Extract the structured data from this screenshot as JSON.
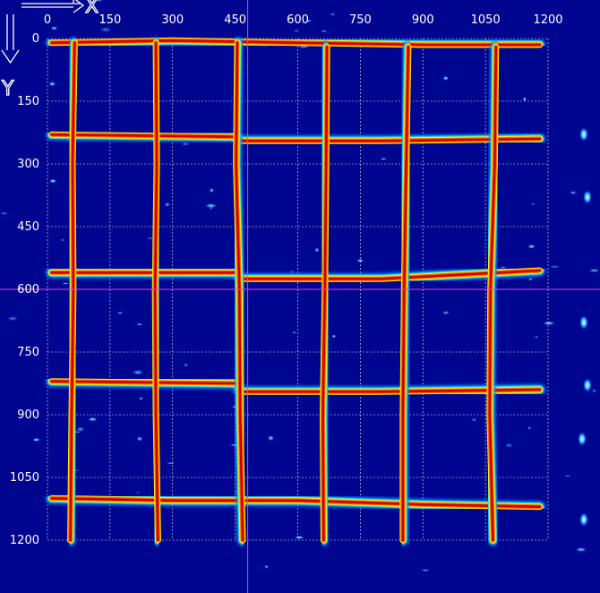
{
  "chart_data": {
    "type": "heatmap",
    "title": "",
    "xlabel": "X",
    "ylabel": "Y",
    "xlim": [
      0,
      1200
    ],
    "ylim": [
      0,
      1200
    ],
    "y_inverted": true,
    "x_ticks": [
      0,
      150,
      300,
      450,
      600,
      750,
      900,
      1050,
      1200
    ],
    "x_tick_labels": [
      "0",
      "150",
      "300",
      "450",
      "600",
      "750",
      "900",
      "1050",
      "1200"
    ],
    "y_ticks": [
      0,
      150,
      300,
      450,
      600,
      750,
      900,
      1050,
      1200
    ],
    "y_tick_labels": [
      "0",
      "150",
      "300",
      "450",
      "600",
      "750",
      "900",
      "1050",
      "1200"
    ],
    "grid": true,
    "colormap": "jet",
    "colors": {
      "background": "#00068f",
      "grid": "#ffffff",
      "crosshair": "#e040e0"
    },
    "crosshair": {
      "x": 480,
      "y": 600
    },
    "vertical_lines": [
      {
        "y_range": [
          10,
          1200
        ],
        "points": [
          [
            65,
            10
          ],
          [
            60,
            300
          ],
          [
            62,
            600
          ],
          [
            58,
            900
          ],
          [
            55,
            1200
          ]
        ]
      },
      {
        "y_range": [
          10,
          1200
        ],
        "points": [
          [
            260,
            10
          ],
          [
            262,
            300
          ],
          [
            258,
            600
          ],
          [
            260,
            900
          ],
          [
            265,
            1200
          ]
        ]
      },
      {
        "y_range": [
          10,
          1200
        ],
        "points": [
          [
            455,
            10
          ],
          [
            452,
            300
          ],
          [
            460,
            600
          ],
          [
            462,
            900
          ],
          [
            468,
            1200
          ]
        ]
      },
      {
        "y_range": [
          20,
          1200
        ],
        "points": [
          [
            670,
            20
          ],
          [
            668,
            300
          ],
          [
            665,
            600
          ],
          [
            660,
            900
          ],
          [
            662,
            1200
          ]
        ]
      },
      {
        "y_range": [
          20,
          1200
        ],
        "points": [
          [
            865,
            20
          ],
          [
            860,
            300
          ],
          [
            855,
            600
          ],
          [
            852,
            900
          ],
          [
            852,
            1200
          ]
        ]
      },
      {
        "y_range": [
          20,
          1200
        ],
        "points": [
          [
            1075,
            20
          ],
          [
            1072,
            300
          ],
          [
            1062,
            600
          ],
          [
            1060,
            900
          ],
          [
            1068,
            1200
          ]
        ]
      }
    ],
    "horizontal_lines": [
      {
        "x_range": [
          10,
          1180
        ],
        "points": [
          [
            10,
            10
          ],
          [
            300,
            5
          ],
          [
            600,
            10
          ],
          [
            900,
            15
          ],
          [
            1180,
            15
          ]
        ]
      },
      {
        "x_range": [
          10,
          1180
        ],
        "points": [
          [
            10,
            230
          ],
          [
            455,
            235
          ],
          [
            460,
            245
          ],
          [
            800,
            245
          ],
          [
            1180,
            240
          ]
        ]
      },
      {
        "x_range": [
          10,
          1180
        ],
        "points": [
          [
            10,
            560
          ],
          [
            455,
            560
          ],
          [
            460,
            575
          ],
          [
            800,
            575
          ],
          [
            1180,
            555
          ]
        ]
      },
      {
        "x_range": [
          10,
          1180
        ],
        "points": [
          [
            10,
            820
          ],
          [
            455,
            825
          ],
          [
            460,
            845
          ],
          [
            800,
            845
          ],
          [
            1180,
            840
          ]
        ]
      },
      {
        "x_range": [
          10,
          1180
        ],
        "points": [
          [
            10,
            1100
          ],
          [
            300,
            1105
          ],
          [
            600,
            1105
          ],
          [
            900,
            1115
          ],
          [
            1180,
            1120
          ]
        ]
      }
    ]
  }
}
